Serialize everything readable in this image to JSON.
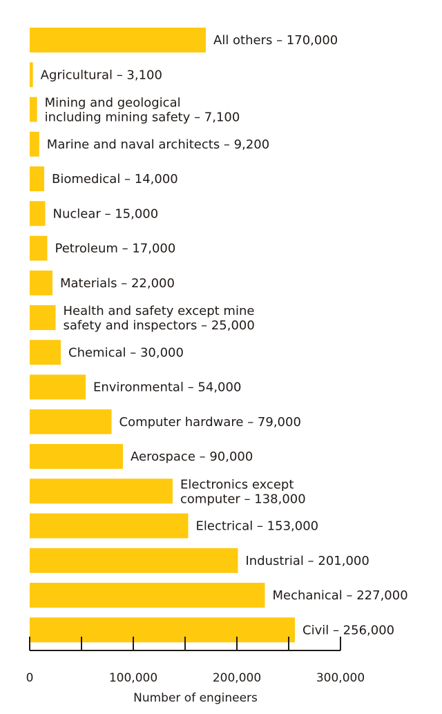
{
  "chart_data": {
    "type": "bar",
    "orientation": "horizontal",
    "title": "",
    "xlabel": "Number of engineers",
    "ylabel": "",
    "xlim": [
      0,
      300000
    ],
    "xticks": [
      0,
      50000,
      100000,
      150000,
      200000,
      250000,
      300000
    ],
    "xtick_labels": [
      "0",
      "",
      "100,000",
      "",
      "200,000",
      "",
      "300,000"
    ],
    "grid": false,
    "legend": "none",
    "bar_color": "#FFC90E",
    "categories": [
      {
        "label": [
          "All others – 170,000"
        ],
        "value": 170000
      },
      {
        "label": [
          "Agricultural – 3,100"
        ],
        "value": 3100
      },
      {
        "label": [
          "Mining and geological",
          "including mining safety – 7,100"
        ],
        "value": 7100
      },
      {
        "label": [
          "Marine and naval architects – 9,200"
        ],
        "value": 9200
      },
      {
        "label": [
          "Biomedical – 14,000"
        ],
        "value": 14000
      },
      {
        "label": [
          "Nuclear – 15,000"
        ],
        "value": 15000
      },
      {
        "label": [
          "Petroleum – 17,000"
        ],
        "value": 17000
      },
      {
        "label": [
          "Materials – 22,000"
        ],
        "value": 22000
      },
      {
        "label": [
          "Health and safety except mine",
          "safety and inspectors – 25,000"
        ],
        "value": 25000
      },
      {
        "label": [
          "Chemical – 30,000"
        ],
        "value": 30000
      },
      {
        "label": [
          "Environmental – 54,000"
        ],
        "value": 54000
      },
      {
        "label": [
          "Computer hardware – 79,000"
        ],
        "value": 79000
      },
      {
        "label": [
          "Aerospace – 90,000"
        ],
        "value": 90000
      },
      {
        "label": [
          "Electronics except",
          "computer – 138,000"
        ],
        "value": 138000
      },
      {
        "label": [
          "Electrical – 153,000"
        ],
        "value": 153000
      },
      {
        "label": [
          "Industrial – 201,000"
        ],
        "value": 201000
      },
      {
        "label": [
          "Mechanical – 227,000"
        ],
        "value": 227000
      },
      {
        "label": [
          "Civil – 256,000"
        ],
        "value": 256000
      }
    ]
  }
}
